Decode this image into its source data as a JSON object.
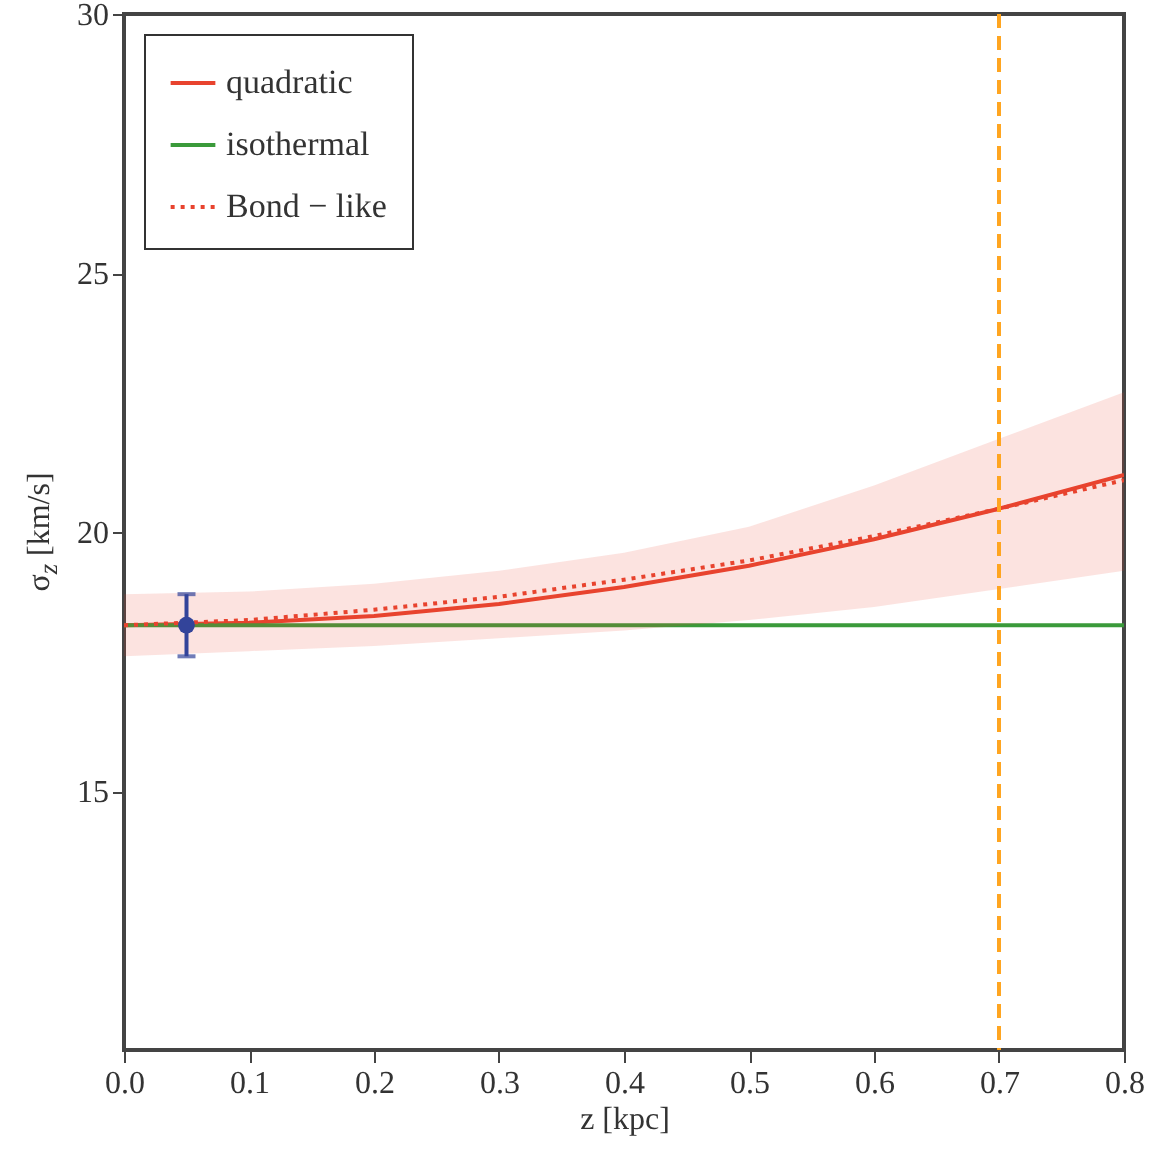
{
  "chart_data": {
    "type": "line",
    "xlabel": "z [kpc]",
    "ylabel": "σ$_{z}$ [km/s]",
    "x": [
      0,
      0.1,
      0.2,
      0.3,
      0.4,
      0.5,
      0.6,
      0.7,
      0.8
    ],
    "xlim": [
      0,
      0.8
    ],
    "xticks": [
      {
        "value": 0,
        "label": "0.0"
      },
      {
        "value": 0.1,
        "label": "0.1"
      },
      {
        "value": 0.2,
        "label": "0.2"
      },
      {
        "value": 0.3,
        "label": "0.3"
      },
      {
        "value": 0.4,
        "label": "0.4"
      },
      {
        "value": 0.5,
        "label": "0.5"
      },
      {
        "value": 0.6,
        "label": "0.6"
      },
      {
        "value": 0.7,
        "label": "0.7"
      },
      {
        "value": 0.8,
        "label": "0.8"
      }
    ],
    "ylim": [
      10,
      30
    ],
    "yticks": [
      15,
      20,
      25,
      30
    ],
    "series": [
      {
        "name": "quadratic",
        "color": "#e8432e",
        "values": [
          18.2,
          18.25,
          18.38,
          18.61,
          18.94,
          19.35,
          19.86,
          20.45,
          21.1
        ],
        "lower": [
          17.6,
          17.7,
          17.8,
          17.95,
          18.1,
          18.3,
          18.55,
          18.9,
          19.25
        ],
        "upper": [
          18.8,
          18.85,
          19.0,
          19.25,
          19.6,
          20.1,
          20.9,
          21.8,
          22.7
        ]
      },
      {
        "name": "isothermal",
        "color": "#3a9a3a",
        "values": [
          18.2,
          18.2,
          18.2,
          18.2,
          18.2,
          18.2,
          18.2,
          18.2,
          18.2
        ]
      },
      {
        "name": "Bond − like",
        "color": "#e8432e",
        "line_style": "dotted",
        "values": [
          18.2,
          18.3,
          18.5,
          18.75,
          19.08,
          19.45,
          19.92,
          20.45,
          21.0
        ]
      },
      {
        "type": "scatter",
        "color": "#33449a",
        "marker": "circle",
        "x": [
          0.05
        ],
        "values": [
          18.2
        ],
        "errors": [
          0.6
        ]
      }
    ],
    "ref_lines": [
      {
        "axis": "x",
        "value": 0.7,
        "color": "#ffa520",
        "line_style": "dashed"
      }
    ],
    "legend": "top left",
    "grid": false
  }
}
